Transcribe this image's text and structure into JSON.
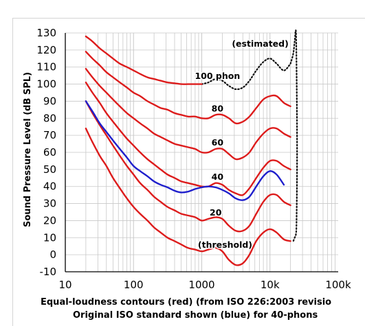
{
  "chart_data": {
    "type": "line",
    "x_scale": "log",
    "xlim": [
      10,
      100000
    ],
    "ylim": [
      -10,
      130
    ],
    "y_ticks": [
      130,
      120,
      110,
      100,
      90,
      80,
      70,
      60,
      50,
      40,
      30,
      20,
      10,
      0,
      -10
    ],
    "x_ticks": [
      {
        "value": 10,
        "label": "10"
      },
      {
        "value": 100,
        "label": "100"
      },
      {
        "value": 1000,
        "label": "1000"
      },
      {
        "value": 10000,
        "label": "10k"
      },
      {
        "value": 100000,
        "label": "100k"
      }
    ],
    "ylabel": "Sound Pressure Level (dB SPL)",
    "xlabel_lines": [
      "Equal-loudness contours (red) (from ISO 226:2003 revisio",
      "Original ISO standard shown (blue) for 40-phons"
    ],
    "grid": true,
    "colors": {
      "iso226": "#dd1c1c",
      "original": "#1f1fcc",
      "estimated": "#111111",
      "grid": "#c8c8c8"
    },
    "series": [
      {
        "name": "(threshold)",
        "style": "red",
        "x": [
          20,
          25,
          32,
          40,
          50,
          63,
          80,
          100,
          125,
          160,
          200,
          250,
          315,
          400,
          500,
          630,
          800,
          1000,
          1250,
          1600,
          2000,
          2500,
          3150,
          4000,
          5000,
          6300,
          8000,
          10000,
          12500,
          16000,
          20000
        ],
        "y": [
          74,
          66,
          58,
          52,
          45,
          39,
          33,
          28,
          24,
          20,
          16,
          13,
          10,
          8,
          6,
          4,
          3,
          2,
          3,
          4,
          2,
          -3,
          -6,
          -5,
          0,
          8,
          13,
          15,
          13,
          9,
          8
        ]
      },
      {
        "name": "20",
        "style": "red",
        "x": [
          20,
          25,
          32,
          40,
          50,
          63,
          80,
          100,
          125,
          160,
          200,
          250,
          315,
          400,
          500,
          630,
          800,
          1000,
          1250,
          1600,
          2000,
          2500,
          3150,
          4000,
          5000,
          6300,
          8000,
          10000,
          12500,
          16000,
          20000
        ],
        "y": [
          90,
          83,
          76,
          70,
          64,
          58,
          52,
          47,
          42,
          38,
          34,
          31,
          28,
          26,
          24,
          23,
          22,
          20,
          21,
          22,
          21,
          17,
          14,
          14,
          17,
          24,
          31,
          35,
          35,
          31,
          29
        ]
      },
      {
        "name": "40",
        "style": "red",
        "x": [
          20,
          25,
          32,
          40,
          50,
          63,
          80,
          100,
          125,
          160,
          200,
          250,
          315,
          400,
          500,
          630,
          800,
          1000,
          1250,
          1600,
          2000,
          2500,
          3150,
          4000,
          5000,
          6300,
          8000,
          10000,
          12500,
          16000,
          20000
        ],
        "y": [
          101,
          95,
          89,
          83,
          78,
          73,
          68,
          64,
          60,
          56,
          53,
          50,
          47,
          45,
          43,
          42,
          41,
          40,
          40,
          42,
          41,
          38,
          36,
          35,
          39,
          45,
          51,
          55,
          55,
          52,
          50
        ]
      },
      {
        "name": "60",
        "style": "red",
        "x": [
          20,
          25,
          32,
          40,
          50,
          63,
          80,
          100,
          125,
          160,
          200,
          250,
          315,
          400,
          500,
          630,
          800,
          1000,
          1250,
          1600,
          2000,
          2500,
          3150,
          4000,
          5000,
          6300,
          8000,
          10000,
          12500,
          16000,
          20000
        ],
        "y": [
          109,
          104,
          99,
          95,
          91,
          87,
          83,
          80,
          77,
          74,
          71,
          69,
          67,
          65,
          64,
          63,
          62,
          60,
          60,
          62,
          62,
          59,
          56,
          57,
          60,
          66,
          71,
          74,
          74,
          71,
          69
        ]
      },
      {
        "name": "80",
        "style": "red",
        "x": [
          20,
          25,
          32,
          40,
          50,
          63,
          80,
          100,
          125,
          160,
          200,
          250,
          315,
          400,
          500,
          630,
          800,
          1000,
          1250,
          1600,
          2000,
          2500,
          3150,
          4000,
          5000,
          6300,
          8000,
          10000,
          12500,
          16000,
          20000
        ],
        "y": [
          119,
          115,
          111,
          107,
          104,
          101,
          98,
          95,
          93,
          90,
          88,
          86,
          85,
          83,
          82,
          81,
          81,
          80,
          80,
          82,
          82,
          80,
          77,
          78,
          81,
          86,
          91,
          93,
          93,
          89,
          87
        ]
      },
      {
        "name": "100 phon",
        "style": "red",
        "x": [
          20,
          25,
          32,
          40,
          50,
          63,
          80,
          100,
          125,
          160,
          200,
          250,
          315,
          400,
          500,
          630,
          800,
          1000
        ],
        "y": [
          128,
          125,
          121,
          118,
          115,
          112,
          110,
          108,
          106,
          104,
          103,
          102,
          101,
          100.5,
          100,
          100,
          100,
          100
        ]
      },
      {
        "name": "(estimated)",
        "style": "dotted",
        "x": [
          1000,
          1250,
          1600,
          2000,
          2500,
          3150,
          4000,
          5000,
          6300,
          8000,
          10000,
          12500,
          16000,
          20000
        ],
        "y": [
          100,
          101,
          103,
          102,
          99,
          97,
          98,
          102,
          108,
          113,
          115,
          112,
          108,
          112
        ]
      },
      {
        "name": "",
        "style": "dotted",
        "x": [
          20000,
          22000,
          23000,
          24000,
          24500,
          25000,
          24500,
          24000,
          23000,
          22000
        ],
        "y": [
          112,
          118,
          125,
          131,
          110,
          60,
          20,
          12,
          10,
          8
        ]
      },
      {
        "name": "",
        "style": "blue",
        "x": [
          20,
          25,
          32,
          40,
          50,
          63,
          80,
          100,
          125,
          160,
          200,
          250,
          315,
          400,
          500,
          630,
          800,
          1000,
          1250,
          1600,
          2000,
          2500,
          3150,
          4000,
          5000,
          6300,
          8000,
          10000,
          12500,
          16000
        ],
        "y": [
          90,
          84,
          77,
          72,
          67,
          62,
          57,
          52,
          49,
          46,
          43,
          41,
          39.5,
          37.5,
          36.5,
          37,
          38.5,
          39.5,
          40,
          39.5,
          38,
          36,
          33,
          32,
          34,
          40,
          46,
          49,
          47,
          41
        ]
      }
    ],
    "labels": [
      {
        "text": "(estimated)",
        "x": 7200,
        "y": 122
      },
      {
        "text": "100 phon",
        "x": 1700,
        "y": 103
      },
      {
        "text": "80",
        "x": 1700,
        "y": 84
      },
      {
        "text": "60",
        "x": 1700,
        "y": 64
      },
      {
        "text": "40",
        "x": 1700,
        "y": 44
      },
      {
        "text": "20",
        "x": 1600,
        "y": 23
      },
      {
        "text": "(threshold)",
        "x": 2200,
        "y": 4
      }
    ]
  }
}
